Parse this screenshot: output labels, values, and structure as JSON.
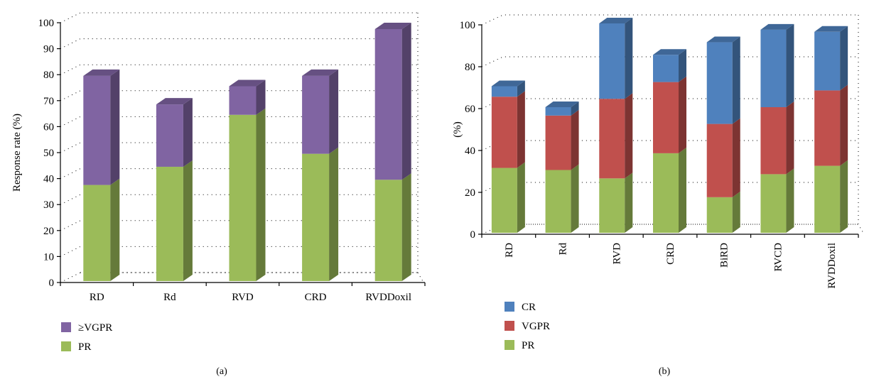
{
  "chart_data": [
    {
      "type": "bar",
      "stacked": true,
      "panel_label": "(a)",
      "title": "",
      "xlabel": "",
      "ylabel": "Response rate (%)",
      "ylim": [
        0,
        100
      ],
      "yticks": [
        0,
        10,
        20,
        30,
        40,
        50,
        60,
        70,
        80,
        90,
        100
      ],
      "grid": true,
      "legend_position": "bottom-left",
      "categories": [
        "RD",
        "Rd",
        "RVD",
        "CRD",
        "RVDDoxil"
      ],
      "series": [
        {
          "name": "PR",
          "color": "#9bbb59",
          "values": [
            37,
            44,
            64,
            49,
            39
          ]
        },
        {
          "name": "≥VGPR",
          "color": "#8064a2",
          "values": [
            42,
            24,
            11,
            30,
            58
          ]
        }
      ],
      "legend": [
        "≥VGPR",
        "PR"
      ]
    },
    {
      "type": "bar",
      "stacked": true,
      "panel_label": "(b)",
      "title": "",
      "xlabel": "",
      "ylabel": "(%)",
      "ylim": [
        0,
        100
      ],
      "yticks": [
        0,
        20,
        40,
        60,
        80,
        100
      ],
      "grid": true,
      "legend_position": "bottom-left",
      "categories": [
        "RD",
        "Rd",
        "RVD",
        "CRD",
        "BiRD",
        "RVCD",
        "RVDDoxil"
      ],
      "series": [
        {
          "name": "PR",
          "color": "#9bbb59",
          "values": [
            31,
            30,
            26,
            38,
            17,
            28,
            32
          ]
        },
        {
          "name": "VGPR",
          "color": "#c0504d",
          "values": [
            34,
            26,
            38,
            34,
            35,
            32,
            36
          ]
        },
        {
          "name": "CR",
          "color": "#4f81bd",
          "values": [
            5,
            4,
            36,
            13,
            39,
            37,
            28
          ]
        }
      ],
      "legend": [
        "CR",
        "VGPR",
        "PR"
      ]
    }
  ]
}
